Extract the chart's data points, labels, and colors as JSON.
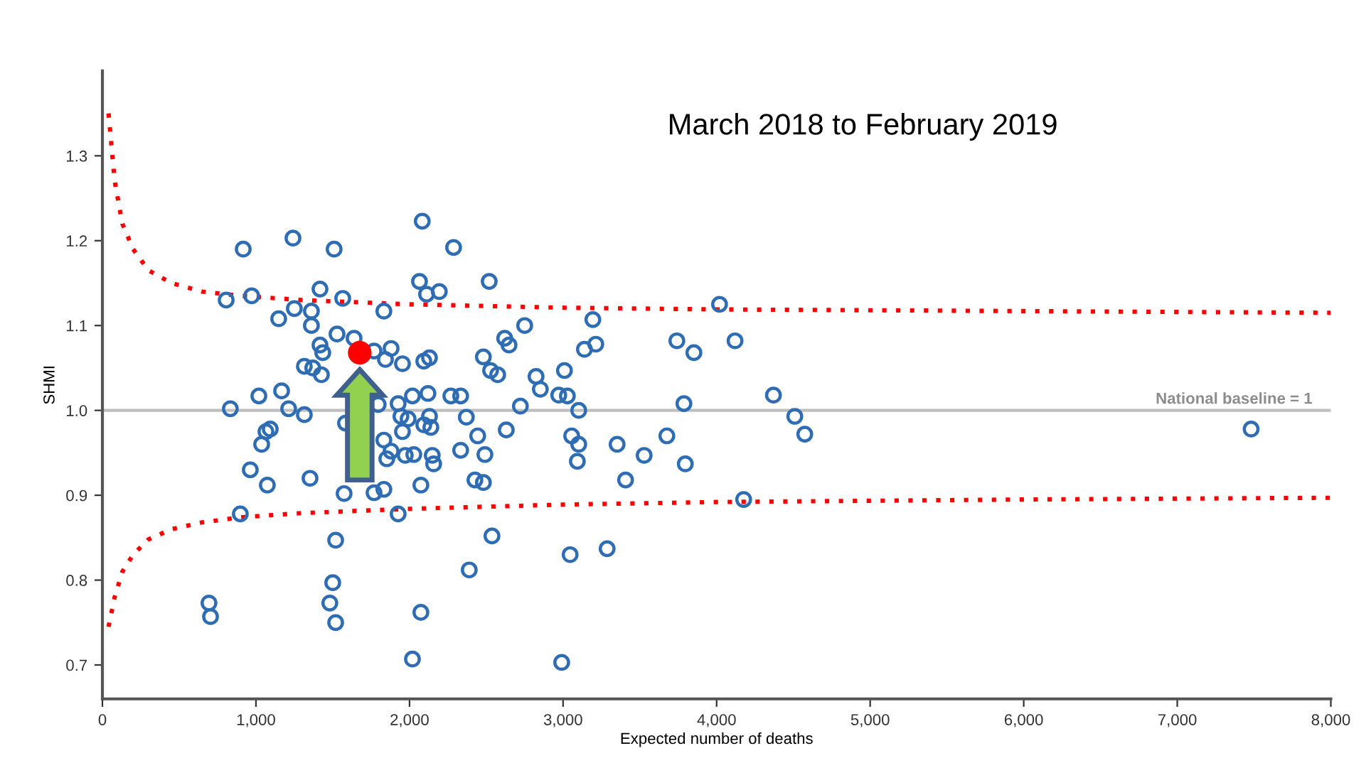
{
  "chart_data": {
    "type": "scatter",
    "title": "March 2018 to February 2019",
    "xlabel": "Expected number of deaths",
    "ylabel": "SHMI",
    "xlim": [
      0,
      8000
    ],
    "xticks": [
      0,
      {
        "value": 1000,
        "label": "1,000"
      },
      {
        "value": 2000,
        "label": "2,000"
      },
      {
        "value": 3000,
        "label": "3,000"
      },
      {
        "value": 4000,
        "label": "4,000"
      },
      {
        "value": 5000,
        "label": "5,000"
      },
      {
        "value": 6000,
        "label": "6,000"
      },
      {
        "value": 7000,
        "label": "7,000"
      },
      {
        "value": 8000,
        "label": "8,000"
      }
    ],
    "ylim": [
      0.66,
      1.4
    ],
    "yticks": [
      0.7,
      0.8,
      0.9,
      {
        "value": 1,
        "label": "1.0"
      },
      1.1,
      1.2,
      1.3
    ],
    "grid": false,
    "legend": false,
    "ref_lines": [
      {
        "axis": "y",
        "value": 1,
        "label": "National baseline = 1",
        "color": "#bfbfbf"
      }
    ],
    "series": [
      {
        "color": "#2e6db4",
        "marker": "circle",
        "x": [
          917,
          1241,
          1509,
          2083,
          2287,
          806,
          972,
          1417,
          1565,
          1148,
          1250,
          1361,
          1361,
          1528,
          1639,
          1417,
          1435,
          1769,
          1880,
          1843,
          1954,
          2093,
          2130,
          1833,
          2065,
          2111,
          2194,
          1315,
          1370,
          1426,
          1019,
          1167,
          833,
          1213,
          1315,
          1796,
          1926,
          2019,
          2120,
          2269,
          2333,
          1944,
          1991,
          2093,
          2139,
          2130,
          2370,
          1093,
          1065,
          1954,
          1583,
          1037,
          963,
          1074,
          1352,
          1833,
          1880,
          1852,
          1972,
          2028,
          2148,
          2157,
          2333,
          2074,
          2426,
          2481,
          1833,
          1574,
          1769,
          1926,
          898,
          1519,
          1500,
          1481,
          1519,
          694,
          704,
          2389,
          2074,
          2019,
          2519,
          4019,
          3194,
          2750,
          2620,
          2648,
          2481,
          2528,
          2574,
          3139,
          3213,
          3741,
          3852,
          4120,
          2824,
          2852,
          3009,
          2972,
          3028,
          3102,
          2722,
          3787,
          4370,
          2444,
          2630,
          3056,
          3102,
          3676,
          3352,
          2491,
          3093,
          3528,
          3796,
          3407,
          4176,
          2537,
          3046,
          3287,
          2991,
          4509,
          4574,
          7481
        ],
        "values": [
          1.19,
          1.203,
          1.19,
          1.223,
          1.192,
          1.13,
          1.135,
          1.143,
          1.132,
          1.108,
          1.12,
          1.117,
          1.1,
          1.09,
          1.085,
          1.077,
          1.068,
          1.07,
          1.073,
          1.06,
          1.055,
          1.058,
          1.062,
          1.117,
          1.152,
          1.137,
          1.14,
          1.052,
          1.05,
          1.042,
          1.017,
          1.023,
          1.002,
          1.002,
          0.995,
          1.007,
          1.008,
          1.017,
          1.02,
          1.017,
          1.017,
          0.993,
          0.99,
          0.983,
          0.98,
          0.993,
          0.992,
          0.978,
          0.975,
          0.975,
          0.985,
          0.96,
          0.93,
          0.912,
          0.92,
          0.965,
          0.952,
          0.943,
          0.947,
          0.948,
          0.947,
          0.937,
          0.953,
          0.912,
          0.918,
          0.915,
          0.907,
          0.902,
          0.903,
          0.878,
          0.878,
          0.847,
          0.797,
          0.773,
          0.75,
          0.773,
          0.757,
          0.812,
          0.762,
          0.707,
          1.152,
          1.125,
          1.107,
          1.1,
          1.085,
          1.077,
          1.063,
          1.047,
          1.042,
          1.072,
          1.078,
          1.082,
          1.068,
          1.082,
          1.04,
          1.025,
          1.047,
          1.018,
          1.017,
          1.0,
          1.005,
          1.008,
          1.018,
          0.97,
          0.977,
          0.97,
          0.96,
          0.97,
          0.96,
          0.948,
          0.94,
          0.947,
          0.937,
          0.918,
          0.895,
          0.852,
          0.83,
          0.837,
          0.703,
          0.993,
          0.972,
          0.978
        ]
      },
      {
        "color": "#ff0000",
        "marker": "circle",
        "x": [
          1676
        ],
        "values": [
          1.068
        ]
      },
      {
        "type": "line",
        "color": "#ff0000",
        "line_style": "dotted",
        "marker": "none",
        "x": [
          40,
          80,
          130,
          200,
          300,
          450,
          650,
          900,
          1300,
          2000,
          3000,
          4000,
          6000,
          8000
        ],
        "values": [
          1.35,
          1.27,
          1.22,
          1.19,
          1.165,
          1.15,
          1.14,
          1.135,
          1.13,
          1.125,
          1.121,
          1.119,
          1.117,
          1.115
        ]
      },
      {
        "type": "line",
        "color": "#ff0000",
        "line_style": "dotted",
        "marker": "none",
        "x": [
          40,
          80,
          130,
          200,
          300,
          450,
          650,
          900,
          1300,
          2000,
          3000,
          4000,
          6000,
          8000
        ],
        "values": [
          0.745,
          0.78,
          0.81,
          0.83,
          0.848,
          0.86,
          0.868,
          0.874,
          0.879,
          0.884,
          0.889,
          0.892,
          0.895,
          0.897
        ]
      }
    ]
  }
}
